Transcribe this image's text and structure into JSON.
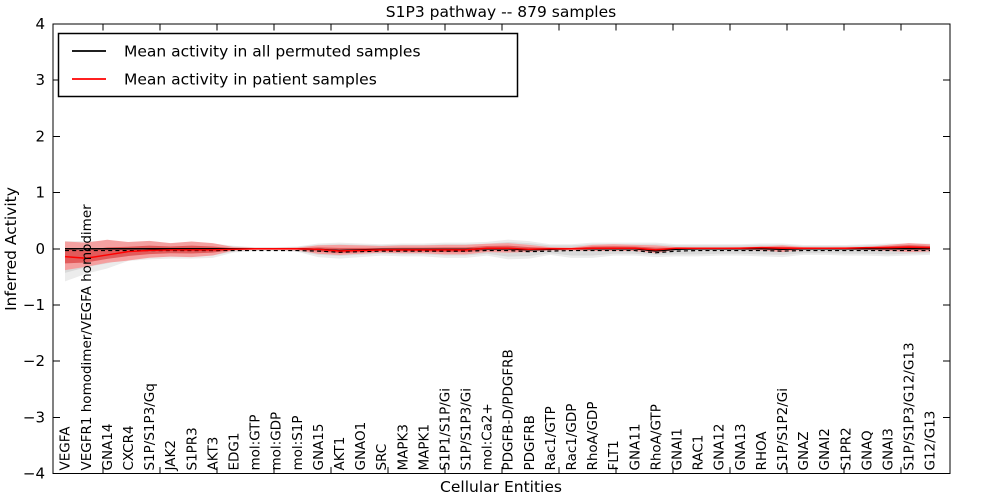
{
  "chart_data": {
    "type": "line",
    "title": "S1P3 pathway -- 879 samples",
    "sample_count": 879,
    "xlabel": "Cellular Entities",
    "ylabel": "Inferred Activity",
    "ylim": [
      -4,
      4
    ],
    "yticks": {
      "values": [
        4,
        3,
        2,
        1,
        0,
        -1,
        -2,
        -3,
        -4
      ],
      "labels": [
        "4",
        "3",
        "2",
        "1",
        "0",
        "−1",
        "−2",
        "−3",
        "−4"
      ]
    },
    "grid": false,
    "legend": {
      "position": "upper left",
      "entries": [
        {
          "label": "Mean activity in all permuted samples",
          "color": "#000000"
        },
        {
          "label": "Mean activity in patient samples",
          "color": "#ff0000"
        }
      ]
    },
    "categories": [
      "VEGFA",
      "VEGFR1 homodimer/VEGFA homodimer",
      "GNA14",
      "CXCR4",
      "S1P/S1P3/Gq",
      "JAK2",
      "S1PR3",
      "AKT3",
      "EDG1",
      "mol:GTP",
      "mol:GDP",
      "mol:S1P",
      "GNA15",
      "AKT1",
      "GNAO1",
      "SRC",
      "MAPK3",
      "MAPK1",
      "S1P1/S1P/Gi",
      "S1P/S1P3/Gi",
      "mol:Ca2+",
      "PDGFB-D/PDGFRB",
      "PDGFRB",
      "Rac1/GTP",
      "Rac1/GDP",
      "RhoA/GDP",
      "FLT1",
      "GNA11",
      "RhoA/GTP",
      "GNAI1",
      "RAC1",
      "GNA12",
      "GNA13",
      "RHOA",
      "S1P/S1P2/Gi",
      "GNAZ",
      "GNAI2",
      "S1PR2",
      "GNAQ",
      "GNAI3",
      "S1P/S1P3/G12/G13",
      "G12/G13"
    ],
    "series": [
      {
        "name": "Mean activity in all permuted samples",
        "color": "#000000",
        "style": "solid-with-dashed-underlay",
        "values": [
          0,
          0,
          0,
          0,
          0,
          0,
          0,
          0,
          0,
          0,
          0,
          0,
          -0.01,
          -0.03,
          -0.02,
          -0.01,
          -0.01,
          -0.01,
          -0.01,
          -0.01,
          0,
          0,
          -0.02,
          -0.01,
          0,
          0,
          0,
          0,
          -0.04,
          -0.01,
          0,
          0,
          0,
          0,
          -0.01,
          0,
          0,
          0,
          0,
          0,
          0,
          0
        ]
      },
      {
        "name": "Mean activity in patient samples",
        "color": "#ff0000",
        "style": "solid",
        "values": [
          -0.14,
          -0.17,
          -0.11,
          -0.05,
          -0.03,
          -0.02,
          -0.02,
          -0.02,
          -0.01,
          0,
          0,
          0,
          -0.01,
          -0.04,
          -0.03,
          -0.02,
          -0.02,
          -0.02,
          -0.02,
          -0.02,
          0.01,
          0.01,
          -0.01,
          0,
          0,
          0.01,
          0.01,
          0.01,
          -0.02,
          0.01,
          0.01,
          0.01,
          0.01,
          0.02,
          0.01,
          0.01,
          0.01,
          0.01,
          0.02,
          0.02,
          0.03,
          0.02
        ]
      }
    ],
    "bands": [
      {
        "name": "permuted-samples-range",
        "color": "#d9d9d9",
        "halo_color": "#ececec",
        "upper": [
          0.1,
          0.1,
          0.1,
          0.08,
          0.08,
          0.07,
          0.08,
          0.07,
          0.04,
          0.02,
          0.02,
          0.03,
          0.07,
          0.08,
          0.07,
          0.06,
          0.07,
          0.07,
          0.08,
          0.08,
          0.09,
          0.12,
          0.1,
          0.06,
          0.06,
          0.08,
          0.08,
          0.08,
          0.08,
          0.06,
          0.06,
          0.06,
          0.06,
          0.07,
          0.07,
          0.05,
          0.05,
          0.05,
          0.06,
          0.07,
          0.07,
          0.07
        ],
        "lower": [
          -0.43,
          -0.33,
          -0.26,
          -0.16,
          -0.14,
          -0.13,
          -0.13,
          -0.12,
          -0.05,
          -0.03,
          -0.03,
          -0.04,
          -0.11,
          -0.13,
          -0.11,
          -0.09,
          -0.1,
          -0.1,
          -0.12,
          -0.12,
          -0.09,
          -0.14,
          -0.13,
          -0.08,
          -0.12,
          -0.12,
          -0.09,
          -0.09,
          -0.11,
          -0.1,
          -0.1,
          -0.09,
          -0.09,
          -0.1,
          -0.11,
          -0.08,
          -0.08,
          -0.09,
          -0.09,
          -0.1,
          -0.09,
          -0.08
        ]
      },
      {
        "name": "patient-samples-range",
        "color": "#f4a0a0",
        "inner_color": "#e25b5b",
        "upper": [
          0.13,
          0.11,
          0.16,
          0.12,
          0.14,
          0.1,
          0.13,
          0.1,
          0.03,
          0.015,
          0.015,
          0.02,
          0.06,
          0.07,
          0.06,
          0.05,
          0.06,
          0.06,
          0.07,
          0.07,
          0.09,
          0.1,
          0.07,
          0.03,
          0.02,
          0.07,
          0.08,
          0.07,
          0.06,
          0.03,
          0.02,
          0.02,
          0.03,
          0.04,
          0.06,
          0.03,
          0.025,
          0.03,
          0.03,
          0.07,
          0.1,
          0.08
        ],
        "lower": [
          -0.38,
          -0.32,
          -0.25,
          -0.21,
          -0.16,
          -0.14,
          -0.15,
          -0.12,
          -0.03,
          -0.02,
          -0.02,
          -0.03,
          -0.09,
          -0.11,
          -0.09,
          -0.07,
          -0.08,
          -0.08,
          -0.1,
          -0.1,
          -0.06,
          -0.07,
          -0.06,
          -0.03,
          -0.03,
          -0.04,
          -0.04,
          -0.04,
          -0.08,
          -0.02,
          -0.02,
          -0.02,
          -0.02,
          -0.03,
          -0.06,
          -0.02,
          -0.015,
          -0.02,
          -0.02,
          -0.04,
          -0.06,
          -0.05
        ]
      }
    ],
    "colors": {
      "frame": "#000000",
      "background": "#ffffff"
    }
  }
}
